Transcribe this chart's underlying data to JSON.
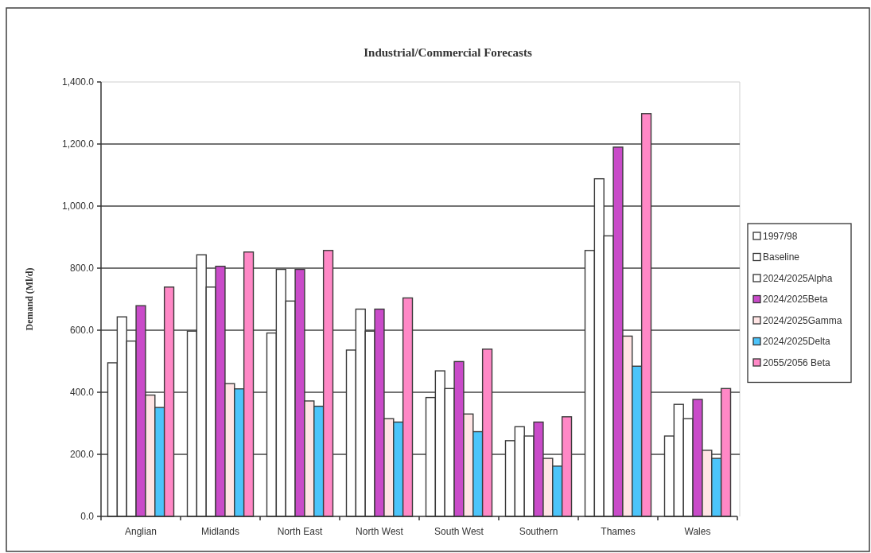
{
  "chart_data": {
    "type": "bar",
    "title": "Industrial/Commercial Forecasts",
    "ylabel": "Demand (Ml/d)",
    "categories": [
      "Anglian",
      "Midlands",
      "North East",
      "North West",
      "South West",
      "Southern",
      "Thames",
      "Wales"
    ],
    "series": [
      {
        "name": "1997/98",
        "color": "#ffffff",
        "values": [
          495,
          597,
          591,
          536,
          383,
          244,
          857,
          259
        ]
      },
      {
        "name": "Baseline",
        "color": "#ffffff",
        "values": [
          643,
          843,
          796,
          668,
          469,
          289,
          1088,
          361
        ]
      },
      {
        "name": "2024/2025Alpha",
        "color": "#ffffff",
        "values": [
          565,
          739,
          694,
          597,
          412,
          259,
          904,
          315
        ]
      },
      {
        "name": "2024/2025Beta",
        "color": "#c94bc9",
        "values": [
          679,
          806,
          796,
          668,
          499,
          304,
          1190,
          377
        ]
      },
      {
        "name": "2024/2025Gamma",
        "color": "#ffe4e4",
        "values": [
          391,
          428,
          372,
          315,
          330,
          187,
          581,
          213
        ]
      },
      {
        "name": "2024/2025Delta",
        "color": "#4cc4fa",
        "values": [
          351,
          411,
          355,
          304,
          273,
          162,
          484,
          187
        ]
      },
      {
        "name": "2055/2056 Beta",
        "color": "#ff88c6",
        "values": [
          739,
          852,
          857,
          704,
          539,
          321,
          1298,
          412
        ]
      }
    ],
    "ylim": [
      0,
      1400
    ],
    "yticks": [
      {
        "value": 0,
        "label": "0.0"
      },
      {
        "value": 200,
        "label": "200.0"
      },
      {
        "value": 400,
        "label": "400.0"
      },
      {
        "value": 600,
        "label": "600.0"
      },
      {
        "value": 800,
        "label": "800.0"
      },
      {
        "value": 1000,
        "label": "1,000.0"
      },
      {
        "value": 1200,
        "label": "1,200.0"
      },
      {
        "value": 1400,
        "label": "1,400.0"
      }
    ],
    "grid": "y",
    "legend": "right"
  }
}
